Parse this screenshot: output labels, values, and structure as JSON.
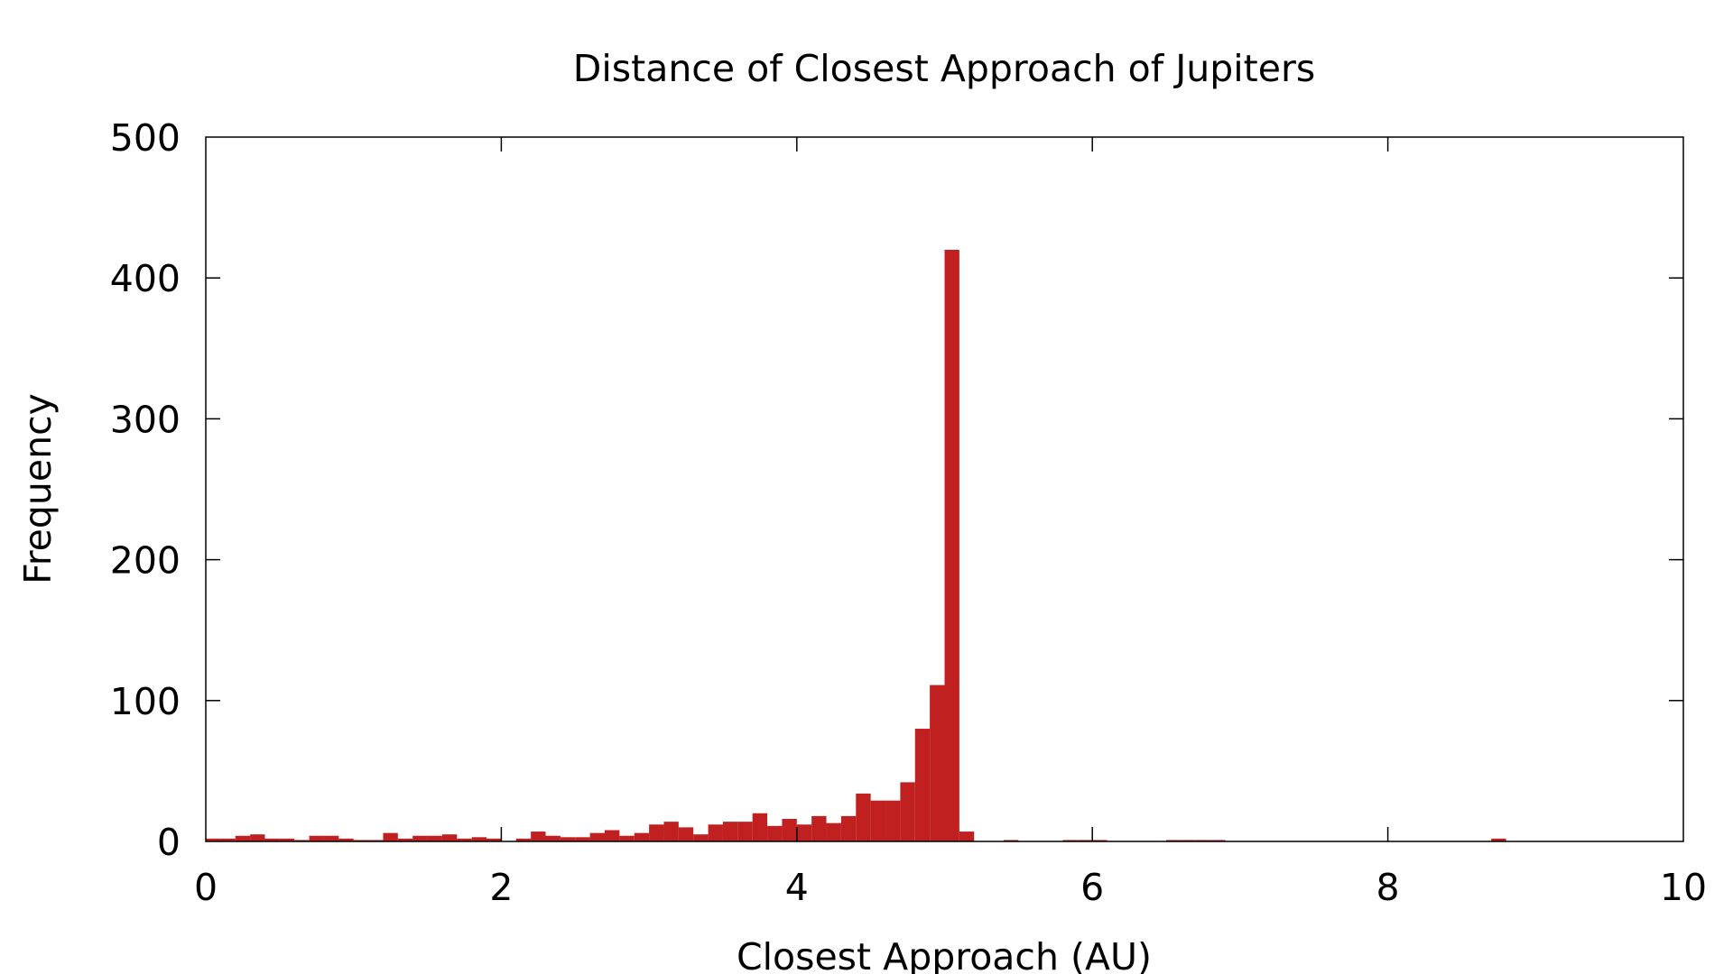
{
  "chart_data": {
    "type": "bar",
    "title": "Distance of Closest Approach of Jupiters",
    "xlabel": "Closest Approach (AU)",
    "ylabel": "Frequency",
    "xlim": [
      0,
      10
    ],
    "ylim": [
      0,
      500
    ],
    "x_ticks": [
      "0",
      "2",
      "4",
      "6",
      "8",
      "10"
    ],
    "y_ticks": [
      "0",
      "100",
      "200",
      "300",
      "400",
      "500"
    ],
    "grid": false,
    "legend": "none",
    "bar_color": "#c02020",
    "bin_width": 0.1,
    "bin_starts": [
      0.0,
      0.1,
      0.2,
      0.3,
      0.4,
      0.5,
      0.6,
      0.7,
      0.8,
      0.9,
      1.0,
      1.1,
      1.2,
      1.3,
      1.4,
      1.5,
      1.6,
      1.7,
      1.8,
      1.9,
      2.0,
      2.1,
      2.2,
      2.3,
      2.4,
      2.5,
      2.6,
      2.7,
      2.8,
      2.9,
      3.0,
      3.1,
      3.2,
      3.3,
      3.4,
      3.5,
      3.6,
      3.7,
      3.8,
      3.9,
      4.0,
      4.1,
      4.2,
      4.3,
      4.4,
      4.5,
      4.6,
      4.7,
      4.8,
      4.9,
      5.0,
      5.1,
      5.2,
      5.3,
      5.4,
      5.5,
      5.6,
      5.7,
      5.8,
      5.9,
      6.0,
      6.1,
      6.2,
      6.3,
      6.4,
      6.5,
      6.6,
      6.7,
      6.8,
      6.9,
      7.0,
      7.1,
      7.2,
      7.3,
      7.4,
      7.5,
      7.6,
      7.7,
      7.8,
      7.9,
      8.0,
      8.1,
      8.2,
      8.3,
      8.4,
      8.5,
      8.6,
      8.7,
      8.8,
      8.9,
      9.0,
      9.1,
      9.2,
      9.3,
      9.4,
      9.5,
      9.6,
      9.7,
      9.8,
      9.9
    ],
    "values": [
      2,
      2,
      4,
      5,
      2,
      2,
      1,
      4,
      4,
      2,
      1,
      1,
      6,
      2,
      4,
      4,
      5,
      2,
      3,
      2,
      0,
      2,
      7,
      4,
      3,
      3,
      6,
      8,
      4,
      6,
      12,
      14,
      10,
      5,
      12,
      14,
      14,
      20,
      11,
      16,
      12,
      18,
      13,
      18,
      34,
      29,
      29,
      42,
      80,
      111,
      420,
      7,
      0,
      0,
      1,
      0,
      0,
      0,
      1,
      1,
      1,
      0,
      0,
      0,
      0,
      1,
      1,
      1,
      1,
      0,
      0,
      0,
      0,
      0,
      0,
      0,
      0,
      0,
      0,
      0,
      0,
      0,
      0,
      0,
      0,
      0,
      0,
      2,
      0,
      0,
      0,
      0,
      0,
      0,
      0,
      0,
      0,
      0,
      0,
      0
    ]
  }
}
